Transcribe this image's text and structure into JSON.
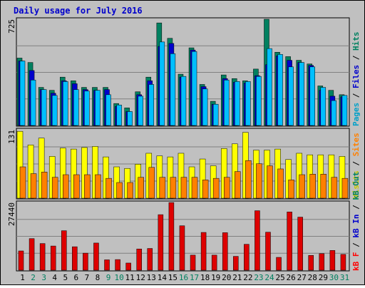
{
  "chart_data": {
    "type": "bar",
    "title": "Daily usage for July 2016",
    "categories": [
      "1",
      "2",
      "3",
      "4",
      "5",
      "6",
      "7",
      "8",
      "9",
      "10",
      "11",
      "12",
      "13",
      "14",
      "15",
      "16",
      "17",
      "18",
      "19",
      "20",
      "21",
      "22",
      "23",
      "24",
      "25",
      "26",
      "27",
      "28",
      "29",
      "30",
      "31"
    ],
    "weekend_days": [
      "2",
      "3",
      "9",
      "10",
      "16",
      "17",
      "23",
      "24",
      "30",
      "31"
    ],
    "panels": [
      {
        "id": "hits",
        "ymax": 725,
        "ymax_label": "725",
        "side_label": [
          {
            "text": "Pages",
            "color": "#00A0C8"
          },
          {
            "text": " / ",
            "color": "#000000"
          },
          {
            "text": "Files",
            "color": "#0000CC"
          },
          {
            "text": " / ",
            "color": "#000000"
          },
          {
            "text": "Hits",
            "color": "#008060"
          }
        ],
        "series": [
          {
            "name": "Hits",
            "color": "#008060",
            "values": [
              460,
              430,
              260,
              240,
              330,
              305,
              260,
              260,
              260,
              150,
              120,
              230,
              330,
              700,
              595,
              350,
              530,
              280,
              165,
              345,
              320,
              305,
              385,
              725,
              500,
              470,
              445,
              420,
              270,
              240,
              210
            ]
          },
          {
            "name": "Files",
            "color": "#0000CC",
            "values": [
              440,
              375,
              245,
              220,
              305,
              285,
              245,
              240,
              245,
              130,
              95,
              210,
              305,
              540,
              560,
              330,
              515,
              265,
              145,
              320,
              295,
              290,
              340,
              415,
              475,
              445,
              430,
              410,
              240,
              200,
              195
            ]
          },
          {
            "name": "Pages",
            "color": "#00BFFF",
            "values": [
              440,
              310,
              245,
              205,
              300,
              245,
              235,
              240,
              210,
              140,
              95,
              200,
              280,
              570,
              490,
              335,
              505,
              250,
              145,
              310,
              300,
              300,
              335,
              525,
              485,
              400,
              430,
              400,
              260,
              170,
              205
            ]
          }
        ]
      },
      {
        "id": "visits",
        "ymax": 131,
        "ymax_label": "131",
        "side_label": [
          {
            "text": "Visits",
            "color": "#C8C800"
          },
          {
            "text": " / ",
            "color": "#000000"
          },
          {
            "text": "Sites",
            "color": "#FF8000"
          }
        ],
        "series": [
          {
            "name": "Visits",
            "color": "#FFFF00",
            "values": [
              128,
              102,
              115,
              80,
              96,
              94,
              97,
              99,
              79,
              60,
              57,
              65,
              86,
              81,
              79,
              86,
              60,
              75,
              62,
              95,
              104,
              126,
              92,
              92,
              94,
              74,
              86,
              83,
              83,
              83,
              80
            ]
          },
          {
            "name": "Sites",
            "color": "#FF8000",
            "values": [
              60,
              47,
              50,
              40,
              45,
              45,
              45,
              45,
              38,
              30,
              30,
              40,
              59,
              40,
              40,
              40,
              40,
              35,
              38,
              40,
              51,
              72,
              66,
              62,
              56,
              35,
              45,
              46,
              46,
              40,
              38
            ]
          }
        ]
      },
      {
        "id": "kbytes",
        "ymax": 27440,
        "ymax_label": "27440",
        "side_label": [
          {
            "text": "kB F",
            "color": "#FF0000"
          },
          {
            "text": " / ",
            "color": "#000000"
          },
          {
            "text": "kB In",
            "color": "#0000CC"
          },
          {
            "text": " / ",
            "color": "#000000"
          },
          {
            "text": "kB Out",
            "color": "#008060"
          }
        ],
        "series": [
          {
            "name": "kB F",
            "color": "#DD0000",
            "values": [
              7800,
              12800,
              10800,
              9800,
              16000,
              9500,
              6900,
              11000,
              4200,
              4300,
              2900,
              8600,
              8800,
              22500,
              27400,
              18000,
              6100,
              15300,
              6100,
              15200,
              5600,
              10500,
              24100,
              15400,
              5200,
              23600,
              21500,
              6000,
              6700,
              8000,
              6400
            ]
          }
        ]
      }
    ]
  }
}
